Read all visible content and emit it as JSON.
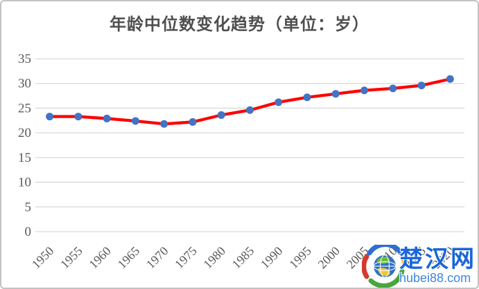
{
  "chart_data": {
    "type": "line",
    "title": "年龄中位数变化趋势（单位：岁）",
    "categories": [
      "1950",
      "1955",
      "1960",
      "1965",
      "1970",
      "1975",
      "1980",
      "1985",
      "1990",
      "1995",
      "2000",
      "2005",
      "2010",
      "2015",
      "2020"
    ],
    "series": [
      {
        "name": "年龄中位数",
        "values": [
          23.3,
          23.3,
          22.9,
          22.4,
          21.8,
          22.2,
          23.6,
          24.6,
          26.2,
          27.2,
          27.9,
          28.6,
          29.0,
          29.6,
          30.9
        ]
      }
    ],
    "xlabel": "",
    "ylabel": "",
    "ylim": [
      0,
      35
    ],
    "ytick_step": 5,
    "yticks": [
      0,
      5,
      10,
      15,
      20,
      25,
      30,
      35
    ],
    "grid": "horizontal",
    "legend": "none",
    "x_label_rotation": -45,
    "marker": "circle"
  },
  "watermark": {
    "site_name": "楚汉网",
    "site_url": "hubei88.com",
    "logo": "globe-swirl-icon",
    "name_color": "#1b66d9",
    "url_color": "#3e86e0"
  },
  "colors": {
    "title": "#4f4f4f",
    "axis_labels": "#595959",
    "gridline": "#d9d9d9",
    "line": "#fe0000",
    "marker": "#4472c4",
    "background": "#ffffff",
    "border": "#c2c2c2"
  }
}
